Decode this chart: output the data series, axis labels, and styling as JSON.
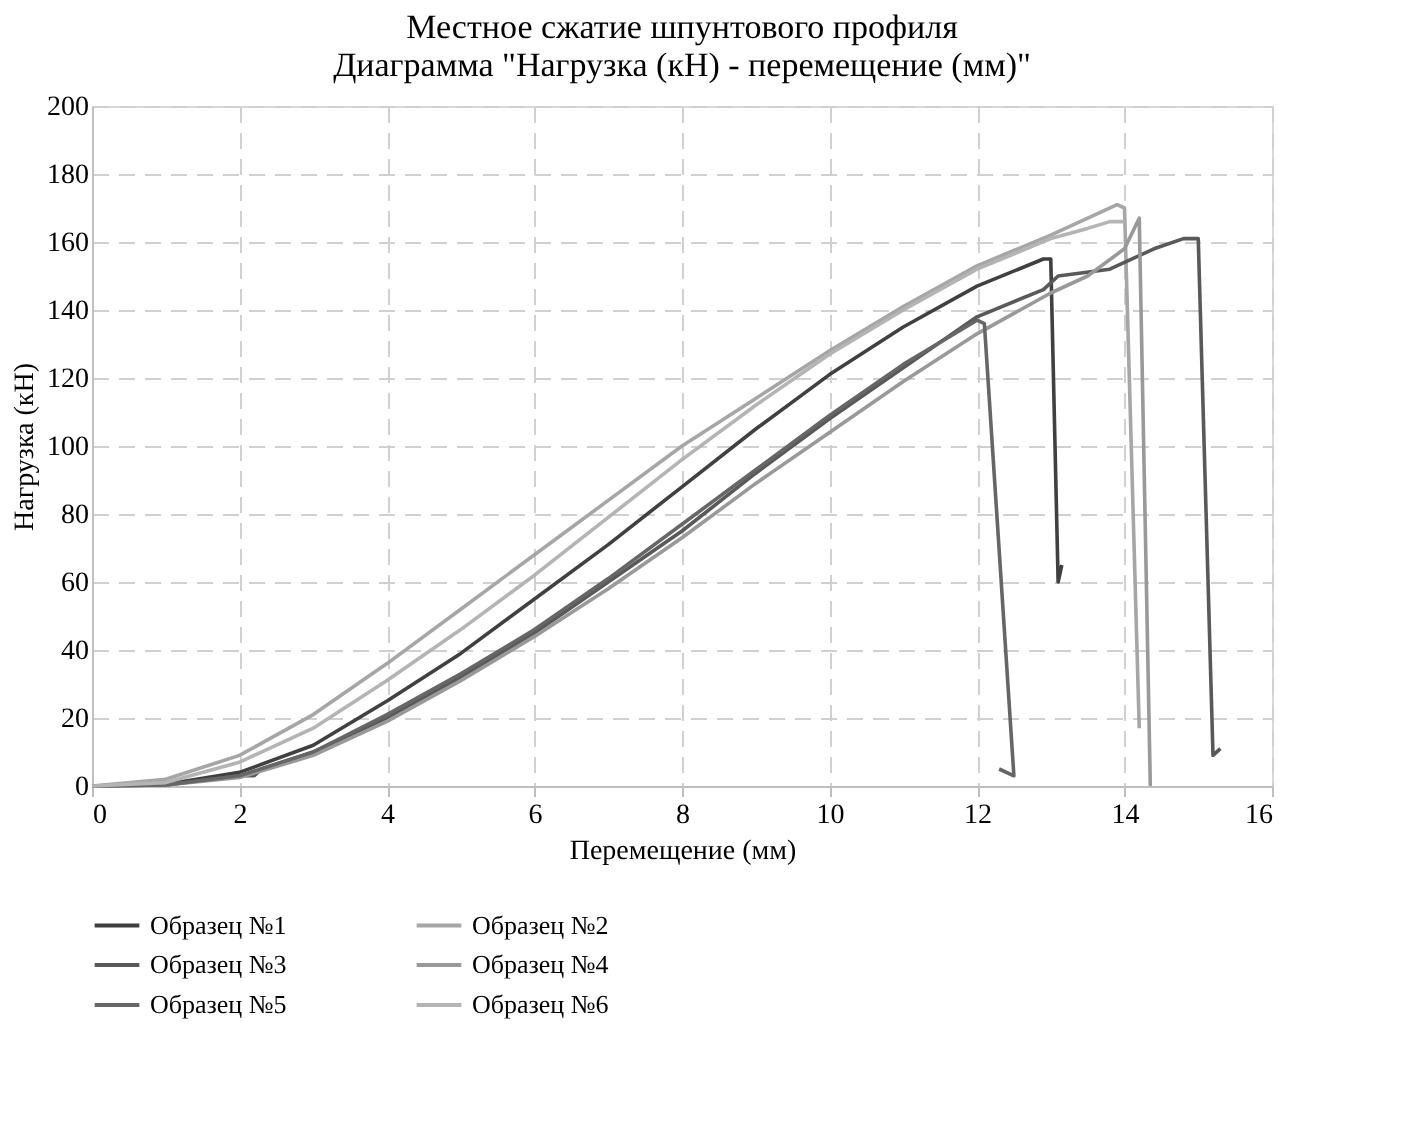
{
  "chart_data": {
    "type": "line",
    "title": [
      "Местное сжатие шпунтового профиля",
      "Диаграмма \"Нагрузка (кН) - перемещение (мм)\""
    ],
    "xlabel": "Перемещение (мм)",
    "ylabel": "Нагрузка (кН)",
    "xlim": [
      0,
      16
    ],
    "xticks": [
      0,
      2,
      4,
      6,
      8,
      10,
      12,
      14,
      16
    ],
    "ylim": [
      0,
      200
    ],
    "yticks": [
      0,
      20,
      40,
      60,
      80,
      100,
      120,
      140,
      160,
      180,
      200
    ],
    "grid": true,
    "legend": "bottom",
    "line_style": "solid",
    "marker": "none",
    "series": [
      {
        "name": "Образец №1",
        "color": "#404040",
        "x": [
          0,
          1,
          2,
          3,
          4,
          5,
          6,
          7,
          8,
          9,
          10,
          11,
          12,
          12.9,
          13.0,
          13.1,
          13.15
        ],
        "values": [
          0,
          0.5,
          4,
          12,
          25,
          39,
          55,
          71,
          88,
          105,
          121,
          135,
          147,
          155,
          155,
          60,
          65
        ]
      },
      {
        "name": "Образец №2",
        "color": "#a6a6a6",
        "x": [
          0,
          1,
          2,
          3,
          4,
          5,
          6,
          7,
          8,
          9,
          10,
          11,
          12,
          13,
          13.9,
          14.0,
          14.2
        ],
        "values": [
          0,
          2,
          9,
          21,
          36,
          52,
          68,
          84,
          100,
          114,
          128,
          141,
          153,
          162,
          171,
          170,
          17
        ]
      },
      {
        "name": "Образец №3",
        "color": "#595959",
        "x": [
          0,
          1,
          2,
          2.2,
          2.3,
          3,
          4,
          5,
          6,
          7,
          8,
          9,
          10,
          11,
          12,
          12.9,
          13.1,
          13.8,
          14.4,
          14.8,
          15.0,
          15.2,
          15.3
        ],
        "values": [
          0,
          0.3,
          3,
          3,
          5,
          10,
          20,
          32,
          45,
          60,
          75,
          92,
          108,
          123,
          138,
          146,
          150,
          152,
          158,
          161,
          161,
          9,
          11
        ]
      },
      {
        "name": "Образец №4",
        "color": "#999999",
        "x": [
          0,
          1,
          2,
          3,
          4,
          5,
          6,
          7,
          8,
          9,
          10,
          11,
          12,
          13,
          13.5,
          14.0,
          14.2,
          14.35
        ],
        "values": [
          0,
          0.3,
          2.5,
          9,
          19,
          31,
          44,
          58,
          73,
          89,
          104,
          119,
          133,
          145,
          150,
          158,
          167,
          0
        ]
      },
      {
        "name": "Образец №5",
        "color": "#666666",
        "x": [
          0,
          1,
          2,
          3,
          4,
          5,
          6,
          7,
          8,
          9,
          10,
          11,
          12,
          12.1,
          12.5,
          12.3
        ],
        "values": [
          0,
          0.3,
          3,
          10,
          21,
          33,
          46,
          61,
          77,
          93,
          109,
          124,
          137,
          136,
          3,
          5
        ]
      },
      {
        "name": "Образец №6",
        "color": "#b4b4b4",
        "x": [
          0,
          1,
          2,
          3,
          4,
          5,
          6,
          7,
          8,
          9,
          10,
          11,
          12,
          13,
          13.5,
          13.8,
          14.0
        ],
        "values": [
          0,
          1,
          7,
          17,
          31,
          46,
          62,
          79,
          96,
          112,
          127,
          140,
          152,
          161,
          164,
          166,
          166
        ]
      }
    ]
  }
}
